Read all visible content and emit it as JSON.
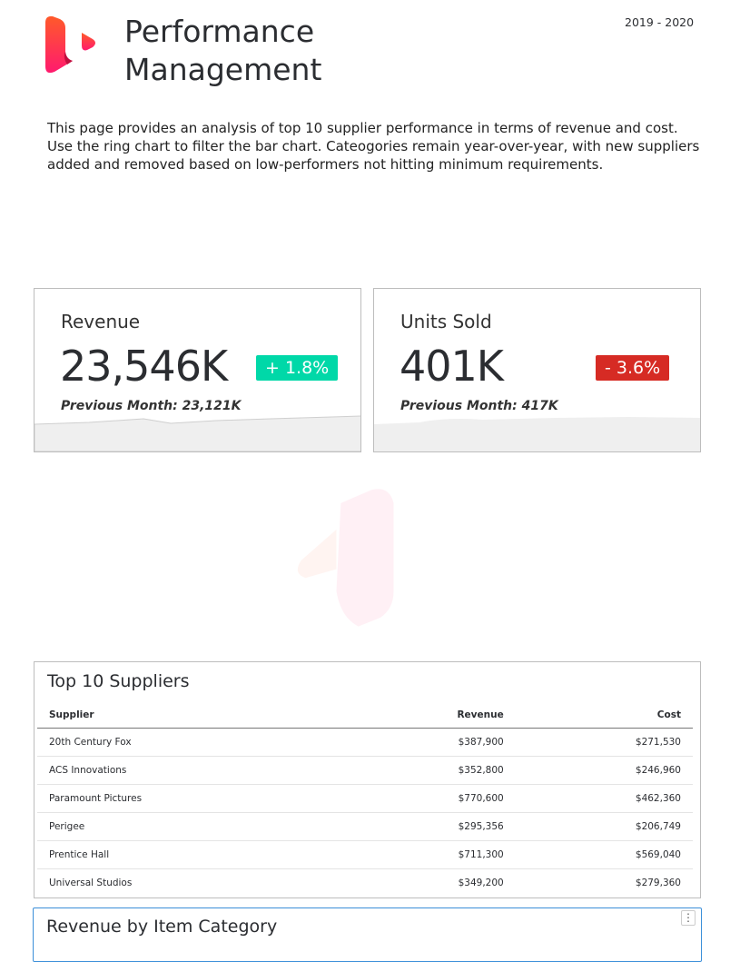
{
  "header": {
    "title_line1": "Performance",
    "title_line2": "Management",
    "period": "2019 - 2020"
  },
  "description": "This page provides an analysis of top 10 supplier performance in terms of revenue and cost. Use the ring chart to filter the bar chart. Cateogories remain year-over-year, with new suppliers added and removed based on low-performers not hitting minimum requirements.",
  "kpis": [
    {
      "label": "Revenue",
      "value": "23,546K",
      "change": "+ 1.8%",
      "change_color": "#00d8a8",
      "previous": "Previous Month: 23,121K"
    },
    {
      "label": "Units Sold",
      "value": "401K",
      "change": "- 3.6%",
      "change_color": "#d62b24",
      "previous": "Previous Month: 417K"
    }
  ],
  "table": {
    "title": "Top 10 Suppliers",
    "columns": [
      "Supplier",
      "Revenue",
      "Cost"
    ],
    "rows": [
      [
        "20th Century Fox",
        "$387,900",
        "$271,530"
      ],
      [
        "ACS Innovations",
        "$352,800",
        "$246,960"
      ],
      [
        "Paramount Pictures",
        "$770,600",
        "$462,360"
      ],
      [
        "Perigee",
        "$295,356",
        "$206,749"
      ],
      [
        "Prentice Hall",
        "$711,300",
        "$569,040"
      ],
      [
        "Universal Studios",
        "$349,200",
        "$279,360"
      ]
    ]
  },
  "revenue_card": {
    "title": "Revenue by Item Category",
    "menu_icon": "kebab-menu-icon"
  },
  "colors": {
    "brand_top": "#ff5a2a",
    "brand_bottom": "#ff1a6e",
    "accent_border": "#3b8fd9"
  }
}
